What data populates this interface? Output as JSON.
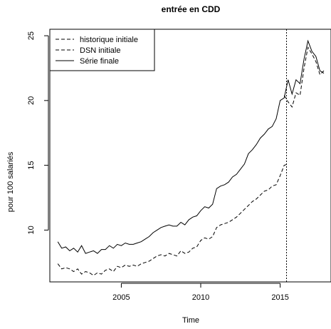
{
  "chart_data": {
    "type": "line",
    "title": "entrée en CDD",
    "xlabel": "Time",
    "ylabel": "pour 100 salariés",
    "xlim": [
      2000.5,
      2018.2
    ],
    "ylim": [
      6.0,
      25.5
    ],
    "x_ticks": [
      2005,
      2010,
      2015
    ],
    "y_ticks": [
      10,
      15,
      20,
      25
    ],
    "grid": false,
    "legend_position": "top-left",
    "vline": {
      "x": 2015.4,
      "style": "dotted"
    },
    "series": [
      {
        "name": "historique initiale",
        "style": "dashed",
        "x": [
          2001.0,
          2001.25,
          2001.5,
          2001.75,
          2002.0,
          2002.25,
          2002.5,
          2002.75,
          2003.0,
          2003.25,
          2003.5,
          2003.75,
          2004.0,
          2004.25,
          2004.5,
          2004.75,
          2005.0,
          2005.25,
          2005.5,
          2005.75,
          2006.0,
          2006.25,
          2006.5,
          2006.75,
          2007.0,
          2007.25,
          2007.5,
          2007.75,
          2008.0,
          2008.25,
          2008.5,
          2008.75,
          2009.0,
          2009.25,
          2009.5,
          2009.75,
          2010.0,
          2010.25,
          2010.5,
          2010.75,
          2011.0,
          2011.25,
          2011.5,
          2011.75,
          2012.0,
          2012.25,
          2012.5,
          2012.75,
          2013.0,
          2013.25,
          2013.5,
          2013.75,
          2014.0,
          2014.25,
          2014.5,
          2014.75,
          2015.0,
          2015.25,
          2015.5
        ],
        "y": [
          7.4,
          7.0,
          7.1,
          7.0,
          6.8,
          7.0,
          6.6,
          6.8,
          6.7,
          6.5,
          6.7,
          6.6,
          6.9,
          7.0,
          6.8,
          7.2,
          7.1,
          7.3,
          7.2,
          7.3,
          7.2,
          7.4,
          7.5,
          7.6,
          7.8,
          8.0,
          8.1,
          8.0,
          8.2,
          8.1,
          8.0,
          8.4,
          8.2,
          8.3,
          8.6,
          8.7,
          9.2,
          9.4,
          9.3,
          9.5,
          10.2,
          10.4,
          10.5,
          10.6,
          10.8,
          11.0,
          11.3,
          11.6,
          11.9,
          12.2,
          12.4,
          12.7,
          13.0,
          13.1,
          13.4,
          13.5,
          14.2,
          15.0,
          15.1
        ]
      },
      {
        "name": "DSN initiale",
        "style": "dashed",
        "x": [
          2015.25,
          2015.5,
          2015.75,
          2016.0,
          2016.25,
          2016.5,
          2016.75,
          2017.0,
          2017.25,
          2017.5,
          2017.75
        ],
        "y": [
          20.4,
          19.9,
          19.5,
          20.6,
          20.4,
          22.5,
          24.1,
          23.6,
          23.0,
          22.0,
          22.3
        ]
      },
      {
        "name": "Série finale",
        "style": "solid",
        "x": [
          2001.0,
          2001.25,
          2001.5,
          2001.75,
          2002.0,
          2002.25,
          2002.5,
          2002.75,
          2003.0,
          2003.25,
          2003.5,
          2003.75,
          2004.0,
          2004.25,
          2004.5,
          2004.75,
          2005.0,
          2005.25,
          2005.5,
          2005.75,
          2006.0,
          2006.25,
          2006.5,
          2006.75,
          2007.0,
          2007.25,
          2007.5,
          2007.75,
          2008.0,
          2008.25,
          2008.5,
          2008.75,
          2009.0,
          2009.25,
          2009.5,
          2009.75,
          2010.0,
          2010.25,
          2010.5,
          2010.75,
          2011.0,
          2011.25,
          2011.5,
          2011.75,
          2012.0,
          2012.25,
          2012.5,
          2012.75,
          2013.0,
          2013.25,
          2013.5,
          2013.75,
          2014.0,
          2014.25,
          2014.5,
          2014.75,
          2015.0,
          2015.25,
          2015.5,
          2015.75,
          2016.0,
          2016.25,
          2016.5,
          2016.75,
          2017.0,
          2017.25,
          2017.5,
          2017.75
        ],
        "y": [
          9.1,
          8.6,
          8.7,
          8.4,
          8.6,
          8.3,
          8.8,
          8.2,
          8.3,
          8.4,
          8.2,
          8.5,
          8.5,
          8.8,
          8.6,
          8.9,
          8.8,
          9.0,
          8.9,
          8.9,
          9.0,
          9.1,
          9.3,
          9.5,
          9.8,
          10.0,
          10.2,
          10.3,
          10.4,
          10.3,
          10.3,
          10.6,
          10.4,
          10.8,
          11.0,
          11.1,
          11.5,
          11.8,
          11.7,
          12.0,
          13.2,
          13.4,
          13.5,
          13.7,
          14.1,
          14.3,
          14.7,
          15.1,
          15.9,
          16.2,
          16.6,
          17.1,
          17.4,
          17.8,
          18.0,
          18.6,
          20.0,
          20.2,
          21.6,
          20.5,
          21.6,
          21.3,
          23.2,
          24.6,
          23.8,
          23.4,
          22.3,
          22.1
        ]
      }
    ]
  }
}
